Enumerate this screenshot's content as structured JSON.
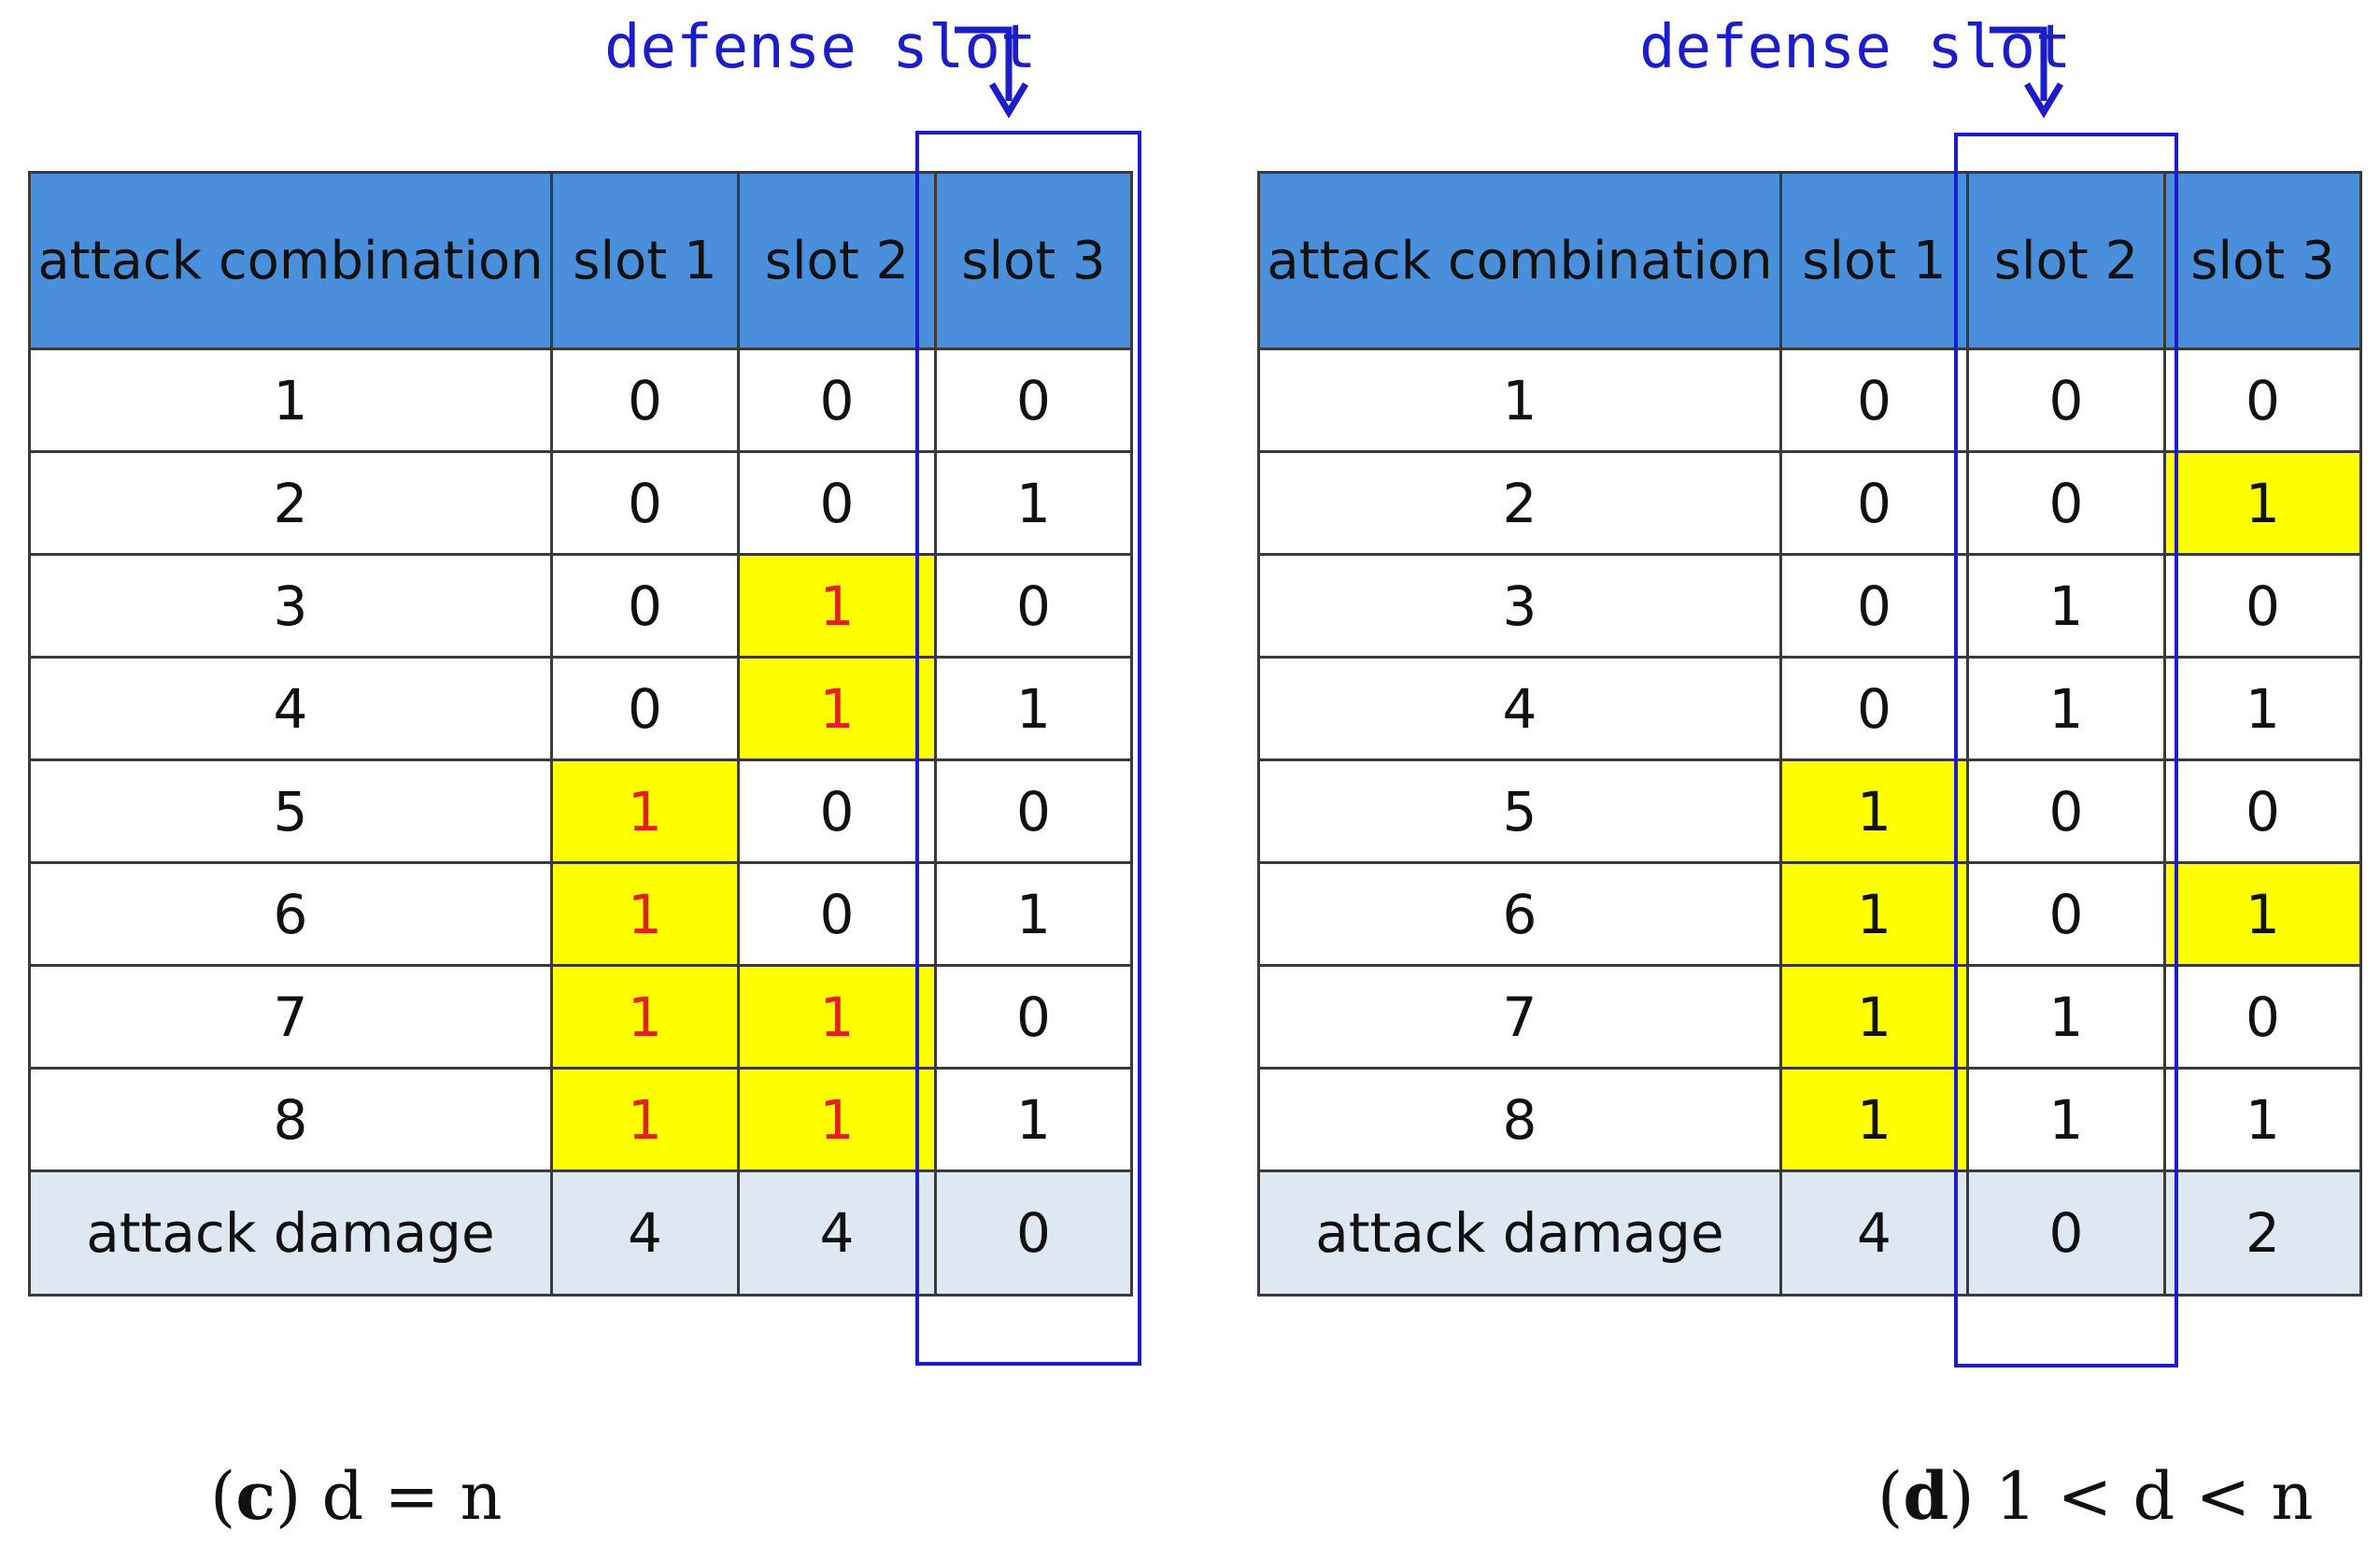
{
  "panels": [
    {
      "id": "c",
      "defense_label": "defense slot",
      "caption_letter": "c",
      "caption_condition": "d = n",
      "headers": [
        "attack combination",
        "slot 1",
        "slot 2",
        "slot 3"
      ],
      "rows": [
        [
          "1",
          "0",
          "0",
          "0"
        ],
        [
          "2",
          "0",
          "0",
          "1"
        ],
        [
          "3",
          "0",
          "1",
          "0"
        ],
        [
          "4",
          "0",
          "1",
          "1"
        ],
        [
          "5",
          "1",
          "0",
          "0"
        ],
        [
          "6",
          "1",
          "0",
          "1"
        ],
        [
          "7",
          "1",
          "1",
          "0"
        ],
        [
          "8",
          "1",
          "1",
          "1"
        ]
      ],
      "damage_row": [
        "attack damage",
        "4",
        "4",
        "0"
      ],
      "highlight_color": "#ffff00",
      "highlight_text_color": "#e32020",
      "defense_slot": "slot 3"
    },
    {
      "id": "d",
      "defense_label": "defense slot",
      "caption_letter": "d",
      "caption_condition": "1 < d < n",
      "headers": [
        "attack combination",
        "slot 1",
        "slot 2",
        "slot 3"
      ],
      "rows": [
        [
          "1",
          "0",
          "0",
          "0"
        ],
        [
          "2",
          "0",
          "0",
          "1"
        ],
        [
          "3",
          "0",
          "1",
          "0"
        ],
        [
          "4",
          "0",
          "1",
          "1"
        ],
        [
          "5",
          "1",
          "0",
          "0"
        ],
        [
          "6",
          "1",
          "0",
          "1"
        ],
        [
          "7",
          "1",
          "1",
          "0"
        ],
        [
          "8",
          "1",
          "1",
          "1"
        ]
      ],
      "damage_row": [
        "attack damage",
        "4",
        "0",
        "2"
      ],
      "highlight_color": "#ffff00",
      "highlight_text_color": "#111111",
      "defense_slot": "slot 2"
    }
  ],
  "colors": {
    "header_bg": "#4a8fdc",
    "damage_row_bg": "#dde8f2",
    "defense_box": "#1c1cc8",
    "grid_line": "#3a3a3a"
  }
}
